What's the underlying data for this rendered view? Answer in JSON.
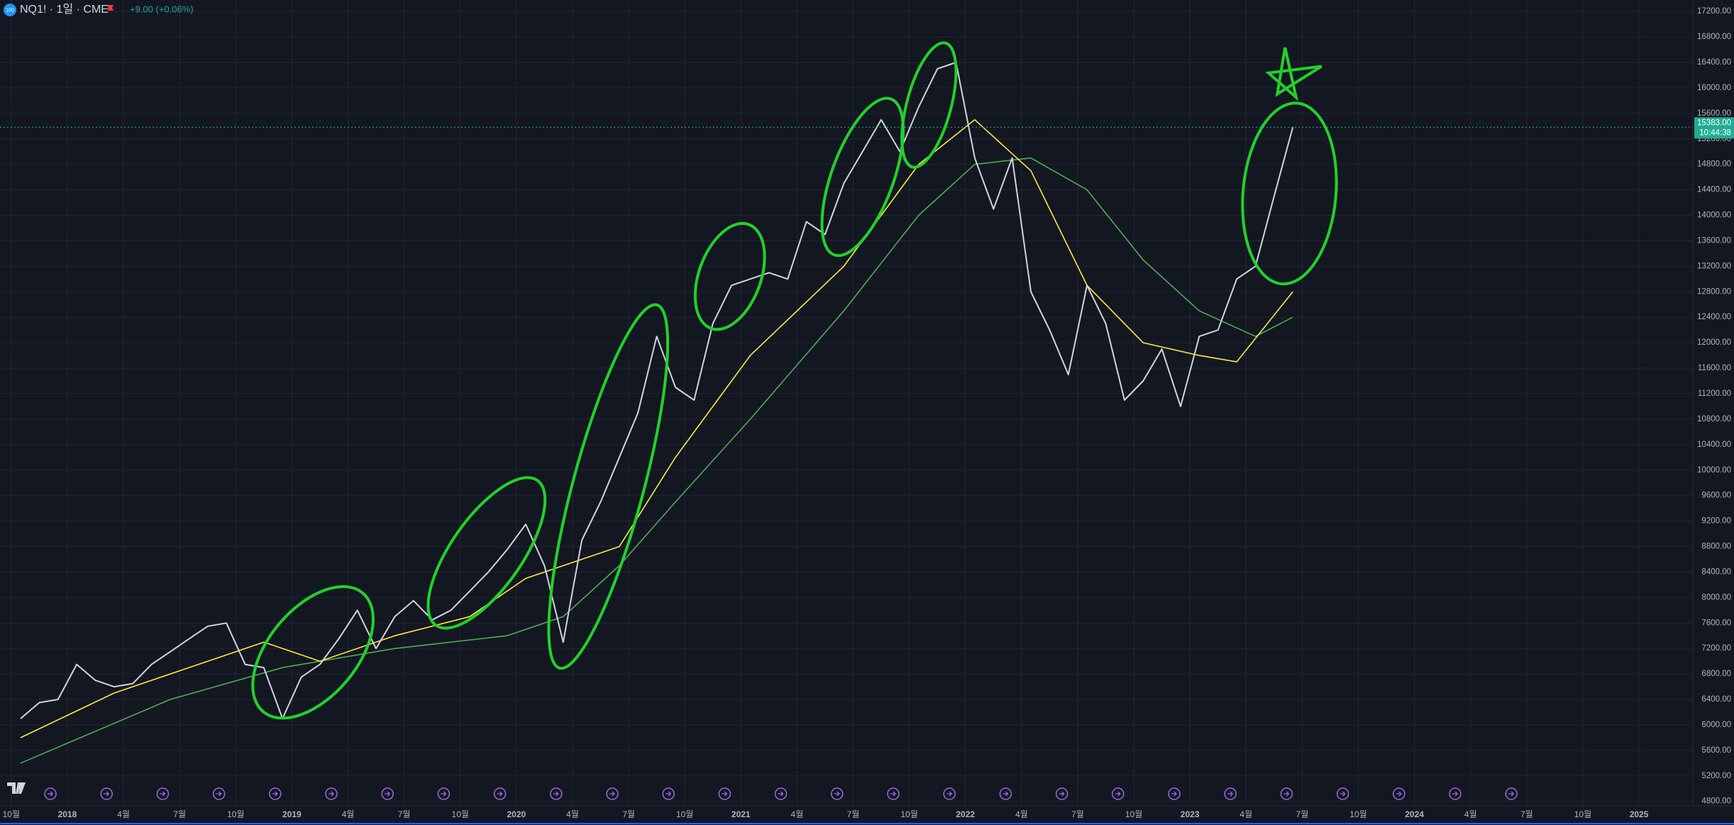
{
  "chart_data": {
    "type": "line",
    "logo_text": "100",
    "title": "NQ1! · 1일 · CME",
    "change": "+9.00 (+0.06%)",
    "last_price_label": "15383.00",
    "countdown": "10:44:38",
    "grid": true,
    "xlim": [
      2017.7,
      2025.24
    ],
    "ylim": [
      4730,
      17380
    ],
    "yticks": [
      {
        "value": 4800,
        "label": "4800.00"
      },
      {
        "value": 5200,
        "label": "5200.00"
      },
      {
        "value": 5600,
        "label": "5600.00"
      },
      {
        "value": 6000,
        "label": "6000.00"
      },
      {
        "value": 6400,
        "label": "6400.00"
      },
      {
        "value": 6800,
        "label": "6800.00"
      },
      {
        "value": 7200,
        "label": "7200.00"
      },
      {
        "value": 7600,
        "label": "7600.00"
      },
      {
        "value": 8000,
        "label": "8000.00"
      },
      {
        "value": 8400,
        "label": "8400.00"
      },
      {
        "value": 8800,
        "label": "8800.00"
      },
      {
        "value": 9200,
        "label": "9200.00"
      },
      {
        "value": 9600,
        "label": "9600.00"
      },
      {
        "value": 10000,
        "label": "10000.00"
      },
      {
        "value": 10400,
        "label": "10400.00"
      },
      {
        "value": 10800,
        "label": "10800.00"
      },
      {
        "value": 11200,
        "label": "11200.00"
      },
      {
        "value": 11600,
        "label": "11600.00"
      },
      {
        "value": 12000,
        "label": "12000.00"
      },
      {
        "value": 12400,
        "label": "12400.00"
      },
      {
        "value": 12800,
        "label": "12800.00"
      },
      {
        "value": 13200,
        "label": "13200.00"
      },
      {
        "value": 13600,
        "label": "13600.00"
      },
      {
        "value": 14000,
        "label": "14000.00"
      },
      {
        "value": 14400,
        "label": "14400.00"
      },
      {
        "value": 14800,
        "label": "14800.00"
      },
      {
        "value": 15200,
        "label": "15200.00"
      },
      {
        "value": 15600,
        "label": "15600.00"
      },
      {
        "value": 16000,
        "label": "16000.00"
      },
      {
        "value": 16400,
        "label": "16400.00"
      },
      {
        "value": 16800,
        "label": "16800.00"
      },
      {
        "value": 17200,
        "label": "17200.00"
      }
    ],
    "xticks": [
      {
        "value": 2017.75,
        "label": "10월"
      },
      2018,
      {
        "value": 2018.25,
        "label": "4월"
      },
      {
        "value": 2018.5,
        "label": "7월"
      },
      {
        "value": 2018.75,
        "label": "10월"
      },
      2019,
      {
        "value": 2019.25,
        "label": "4월"
      },
      {
        "value": 2019.5,
        "label": "7월"
      },
      {
        "value": 2019.75,
        "label": "10월"
      },
      2020,
      {
        "value": 2020.25,
        "label": "4월"
      },
      {
        "value": 2020.5,
        "label": "7월"
      },
      {
        "value": 2020.75,
        "label": "10월"
      },
      2021,
      {
        "value": 2021.25,
        "label": "4월"
      },
      {
        "value": 2021.5,
        "label": "7월"
      },
      {
        "value": 2021.75,
        "label": "10월"
      },
      2022,
      {
        "value": 2022.25,
        "label": "4월"
      },
      {
        "value": 2022.5,
        "label": "7월"
      },
      {
        "value": 2022.75,
        "label": "10월"
      },
      2023,
      {
        "value": 2023.25,
        "label": "4월"
      },
      {
        "value": 2023.5,
        "label": "7월"
      },
      {
        "value": 2023.75,
        "label": "10월"
      },
      2024,
      {
        "value": 2024.25,
        "label": "4월"
      },
      {
        "value": 2024.5,
        "label": "7월"
      },
      {
        "value": 2024.75,
        "label": "10월"
      },
      2025
    ],
    "series": [
      {
        "color": "#4caf50",
        "x": [
          "2017-10",
          "2018-06",
          "2018-12",
          "2019-06",
          "2019-12",
          "2020-03",
          "2020-06",
          "2020-09",
          "2021-01",
          "2021-06",
          "2021-10",
          "2022-01",
          "2022-04",
          "2022-07",
          "2022-10",
          "2023-01",
          "2023-04",
          "2023-06"
        ],
        "values": [
          5400,
          6400,
          6900,
          7200,
          7400,
          7700,
          8500,
          9500,
          10800,
          12500,
          14000,
          14800,
          14900,
          14400,
          13300,
          12500,
          12100,
          12400
        ]
      },
      {
        "color": "#ffeb3b",
        "x": [
          "2017-10",
          "2018-03",
          "2018-09",
          "2018-11",
          "2019-02",
          "2019-06",
          "2019-10",
          "2020-01",
          "2020-03",
          "2020-06",
          "2020-09",
          "2021-01",
          "2021-06",
          "2021-10",
          "2022-01",
          "2022-04",
          "2022-07",
          "2022-10",
          "2023-01",
          "2023-03",
          "2023-06"
        ],
        "values": [
          5800,
          6500,
          7100,
          7300,
          7000,
          7400,
          7700,
          8300,
          8500,
          8800,
          10200,
          11800,
          13200,
          14800,
          15500,
          14700,
          12900,
          12000,
          11800,
          11700,
          12800
        ]
      },
      {
        "color": "#d1d4dc",
        "x": [
          "2017-10",
          "2017-11",
          "2017-12",
          "2018-01",
          "2018-02",
          "2018-03",
          "2018-04",
          "2018-05",
          "2018-06",
          "2018-07",
          "2018-08",
          "2018-09",
          "2018-10",
          "2018-11",
          "2018-12",
          "2019-01",
          "2019-02",
          "2019-03",
          "2019-04",
          "2019-05",
          "2019-06",
          "2019-07",
          "2019-08",
          "2019-09",
          "2019-10",
          "2019-11",
          "2019-12",
          "2020-01",
          "2020-02",
          "2020-03",
          "2020-04",
          "2020-05",
          "2020-06",
          "2020-07",
          "2020-08",
          "2020-09",
          "2020-10",
          "2020-11",
          "2020-12",
          "2021-01",
          "2021-02",
          "2021-03",
          "2021-04",
          "2021-05",
          "2021-06",
          "2021-07",
          "2021-08",
          "2021-09",
          "2021-10",
          "2021-11",
          "2021-12",
          "2022-01",
          "2022-02",
          "2022-03",
          "2022-04",
          "2022-05",
          "2022-06",
          "2022-07",
          "2022-08",
          "2022-09",
          "2022-10",
          "2022-11",
          "2022-12",
          "2023-01",
          "2023-02",
          "2023-03",
          "2023-04",
          "2023-05",
          "2023-06"
        ],
        "values": [
          6100,
          6350,
          6400,
          6950,
          6700,
          6600,
          6650,
          6950,
          7150,
          7350,
          7550,
          7600,
          6950,
          6900,
          6100,
          6750,
          6950,
          7350,
          7800,
          7200,
          7700,
          7950,
          7650,
          7800,
          8100,
          8400,
          8750,
          9150,
          8500,
          7300,
          8900,
          9500,
          10200,
          10900,
          12100,
          11300,
          11100,
          12300,
          12900,
          13000,
          13100,
          13000,
          13900,
          13700,
          14500,
          15000,
          15500,
          15000,
          15700,
          16300,
          16400,
          14900,
          14100,
          14900,
          12800,
          12200,
          11500,
          12900,
          12300,
          11100,
          11400,
          11900,
          11000,
          12100,
          12200,
          13000,
          13200,
          14300,
          15383
        ]
      }
    ]
  }
}
